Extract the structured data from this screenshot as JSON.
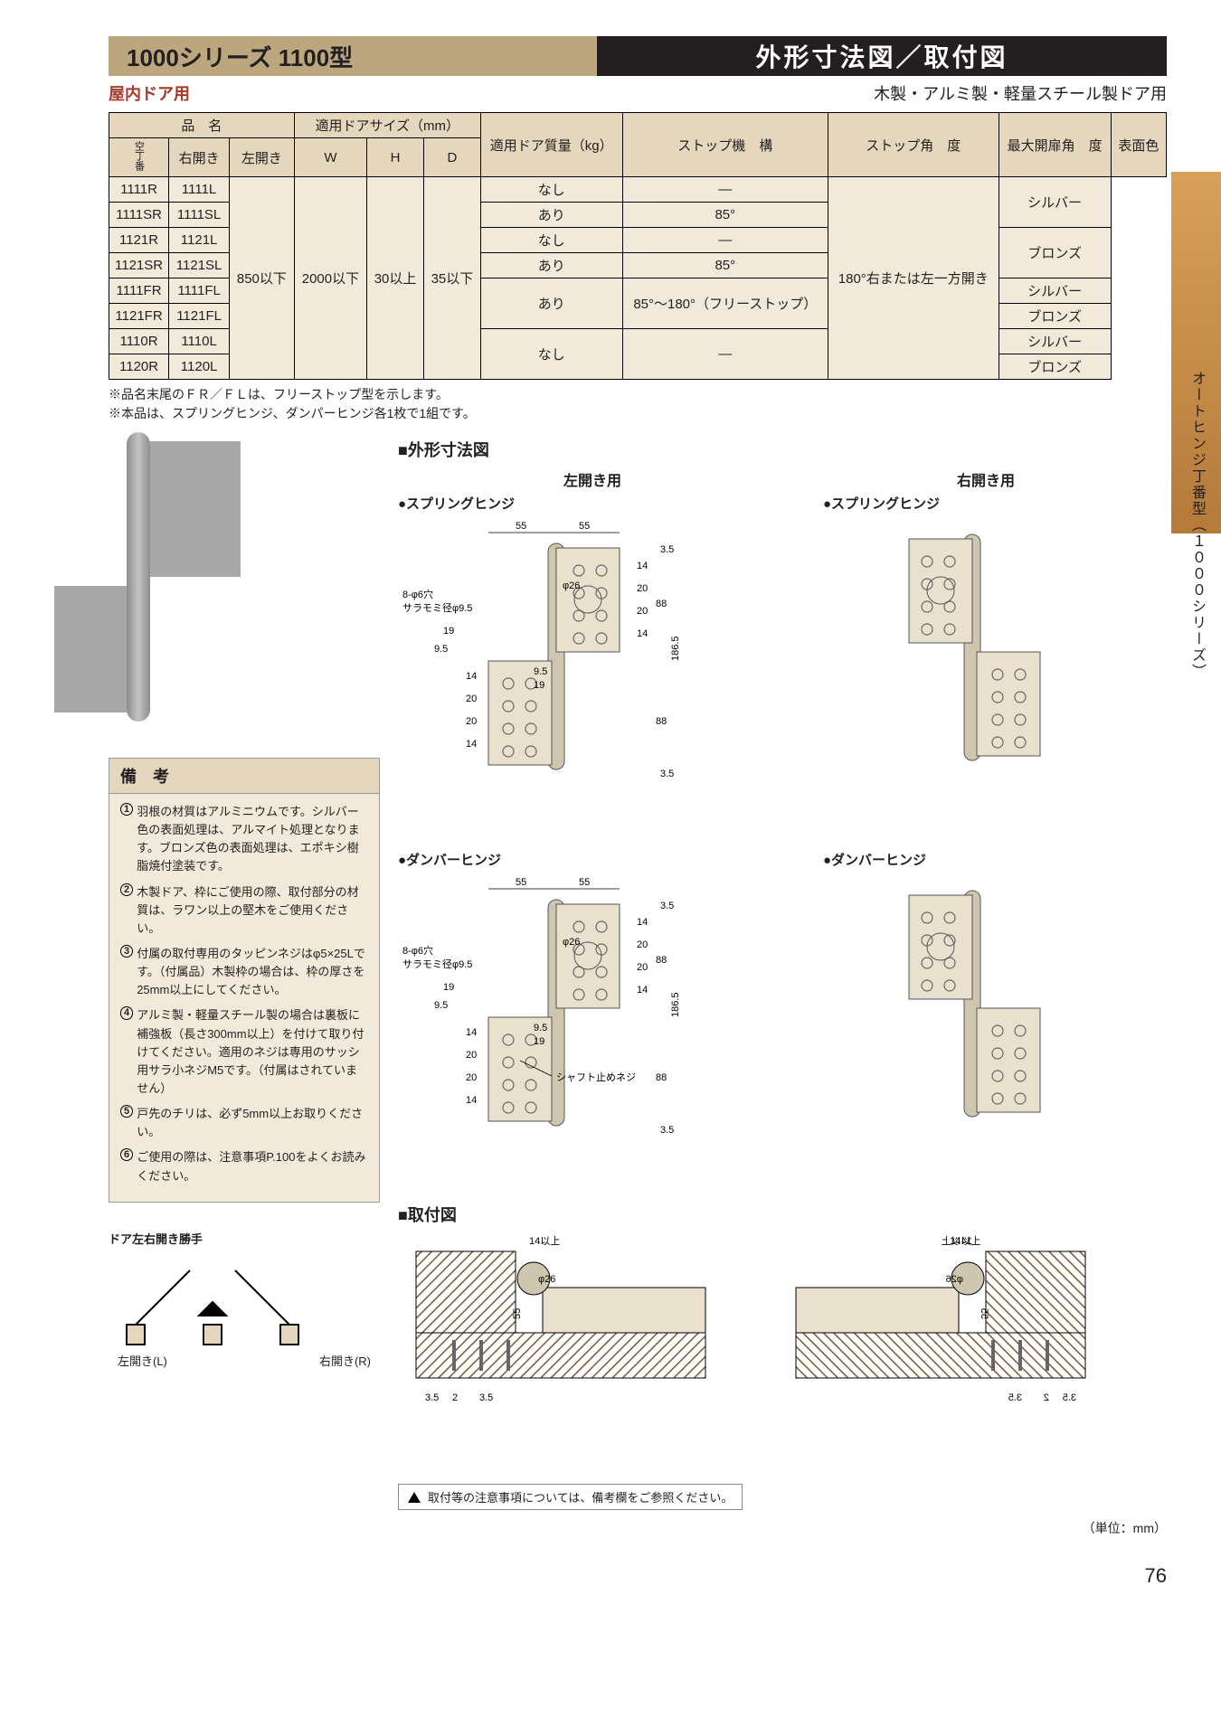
{
  "header": {
    "series": "1000シリーズ  1100型",
    "right": "外形寸法図／取付図",
    "sub_left": "屋内ドア用",
    "sub_right": "木製・アルミ製・軽量スチール製ドア用"
  },
  "side_label": "オートヒンジ丁番型（１０００シリーズ）",
  "table": {
    "head": {
      "name": "品　名",
      "door_size": "適用ドアサイズ（mm）",
      "door_mass": "適用ドア質量（kg）",
      "stop_mech": "ストップ機　構",
      "stop_angle": "ストップ角　度",
      "max_open": "最大開扉角　度",
      "color": "表面色",
      "right_open": "右開き",
      "left_open": "左開き",
      "W": "W",
      "H": "H",
      "D": "D",
      "vert_label": "空丁番"
    },
    "shared": {
      "W": "850以下",
      "H": "2000以下",
      "D": "30以上",
      "mass": "35以下",
      "max_open": "180°右または左一方開き"
    },
    "rows": [
      {
        "r": "1111R",
        "l": "1111L",
        "stop": "なし",
        "angle": "—",
        "color": "シルバー",
        "color_span": 2
      },
      {
        "r": "1111SR",
        "l": "1111SL",
        "stop": "あり",
        "angle": "85°"
      },
      {
        "r": "1121R",
        "l": "1121L",
        "stop": "なし",
        "angle": "—",
        "color": "ブロンズ",
        "color_span": 2
      },
      {
        "r": "1121SR",
        "l": "1121SL",
        "stop": "あり",
        "angle": "85°"
      },
      {
        "r": "1111FR",
        "l": "1111FL",
        "stop": "あり",
        "stop_span": 2,
        "angle": "85°〜180°（フリーストップ）",
        "angle_span": 2,
        "color": "シルバー"
      },
      {
        "r": "1121FR",
        "l": "1121FL",
        "color": "ブロンズ"
      },
      {
        "r": "1110R",
        "l": "1110L",
        "stop": "なし",
        "stop_span": 2,
        "angle": "—",
        "angle_span": 2,
        "color": "シルバー",
        "vert": true
      },
      {
        "r": "1120R",
        "l": "1120L",
        "color": "ブロンズ",
        "vert": true
      }
    ]
  },
  "notes": {
    "n1": "※品名末尾のＦＲ／ＦＬは、フリーストップ型を示します。",
    "n2": "※本品は、スプリングヒンジ、ダンパーヒンジ各1枚で1組です。"
  },
  "remarks_title": "備　考",
  "remarks": [
    "羽根の材質はアルミニウムです。シルバー色の表面処理は、アルマイト処理となります。ブロンズ色の表面処理は、エポキシ樹脂焼付塗装です。",
    "木製ドア、枠にご使用の際、取付部分の材質は、ラワン以上の堅木をご使用ください。",
    "付属の取付専用のタッピンネジはφ5×25Lです。（付属品）木製枠の場合は、枠の厚さを25mm以上にしてください。",
    "アルミ製・軽量スチール製の場合は裏板に補強板（長さ300mm以上）を付けて取り付けてください。適用のネジは専用のサッシ用サラ小ネジM5です。（付属はされていません）",
    "戸先のチリは、必ず5mm以上お取りください。",
    "ご使用の際は、注意事項P.100をよくお読みください。"
  ],
  "lr": {
    "title": "ドア左右開き勝手",
    "left": "左開き(L)",
    "right": "右開き(R)"
  },
  "sections": {
    "outline": "■外形寸法図",
    "mount": "■取付図",
    "left_use": "左開き用",
    "right_use": "右開き用",
    "spring": "●スプリングヒンジ",
    "damper": "●ダンバーヒンジ"
  },
  "dims": {
    "w_out": "55",
    "w_in": "55",
    "phi": "φ26",
    "hole_note": "8-φ6穴",
    "csk": "サラモミ径φ9.5",
    "d19": "19",
    "d9_5": "9.5",
    "d14": "14",
    "d20": "20",
    "d3_5": "3.5",
    "d88": "88",
    "d186_5": "186.5",
    "shaft": "シャフト止めネジ",
    "mount14": "14以上",
    "mount55": "55",
    "mount2": "2",
    "mount3_5": "3.5",
    "mount_phi": "φ26"
  },
  "footer_note": "取付等の注意事項については、備考欄をご参照ください。",
  "unit": "（単位：mm）",
  "page": "76",
  "colors": {
    "beige": "#f1e9d9",
    "hdr": "#e5d7bd",
    "gold": "#bba67e",
    "leaf": "#e9e1cd",
    "knuckle": "#cfc6af"
  }
}
